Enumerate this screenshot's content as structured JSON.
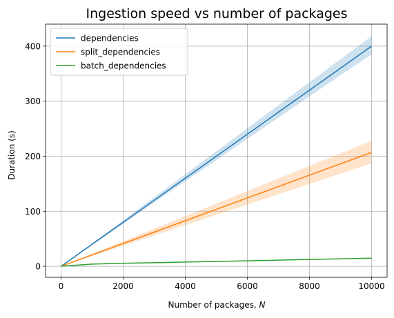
{
  "chart_data": {
    "type": "line",
    "title": "Ingestion speed vs number of packages",
    "xlabel_prefix": "Number of packages, ",
    "xlabel_var": "N",
    "ylabel": "Duration (s)",
    "xlim": [
      -500,
      10500
    ],
    "ylim": [
      -20,
      440
    ],
    "xticks": [
      0,
      2000,
      4000,
      6000,
      8000,
      10000
    ],
    "yticks": [
      0,
      100,
      200,
      300,
      400
    ],
    "grid": true,
    "legend_position": "top-left",
    "series": [
      {
        "name": "dependencies",
        "color": "#1f77b4",
        "x": [
          0,
          1000,
          2000,
          3000,
          4000,
          5000,
          6000,
          7000,
          8000,
          9000,
          10000
        ],
        "y": [
          0,
          40,
          80,
          120,
          160,
          200,
          240,
          280,
          320,
          360,
          400
        ],
        "y_lower": [
          0,
          38.6,
          77.2,
          115.8,
          154.4,
          193,
          231.6,
          270.2,
          308.8,
          347.4,
          385
        ],
        "y_upper": [
          0,
          41.8,
          83.6,
          125.4,
          167.2,
          209,
          250.8,
          292.6,
          334.4,
          376.2,
          418
        ]
      },
      {
        "name": "split_dependencies",
        "color": "#ff7f0e",
        "x": [
          0,
          1000,
          2000,
          3000,
          4000,
          5000,
          6000,
          7000,
          8000,
          9000,
          10000
        ],
        "y": [
          0,
          20.7,
          41.4,
          62.1,
          82.8,
          103.5,
          124.2,
          144.9,
          165.6,
          186.3,
          207
        ],
        "y_lower": [
          0,
          18.7,
          37.4,
          56.1,
          74.8,
          93.5,
          112.2,
          130.9,
          149.6,
          168.3,
          187
        ],
        "y_upper": [
          0,
          22.8,
          45.6,
          68.4,
          91.2,
          114,
          136.8,
          159.6,
          182.4,
          205.2,
          228
        ]
      },
      {
        "name": "batch_dependencies",
        "color": "#2ca02c",
        "x": [
          0,
          1000,
          2000,
          3000,
          4000,
          5000,
          6000,
          7000,
          8000,
          9000,
          10000
        ],
        "y": [
          0,
          4,
          5.5,
          6.5,
          7.7,
          8.8,
          10,
          11.2,
          12.4,
          13.6,
          14.8
        ],
        "y_lower": [
          0,
          3.7,
          5.2,
          6.2,
          7.4,
          8.5,
          9.7,
          10.9,
          12.1,
          13.3,
          14.5
        ],
        "y_upper": [
          0,
          4.3,
          5.8,
          6.8,
          8,
          9.1,
          10.3,
          11.5,
          12.7,
          13.9,
          15.1
        ]
      }
    ]
  }
}
